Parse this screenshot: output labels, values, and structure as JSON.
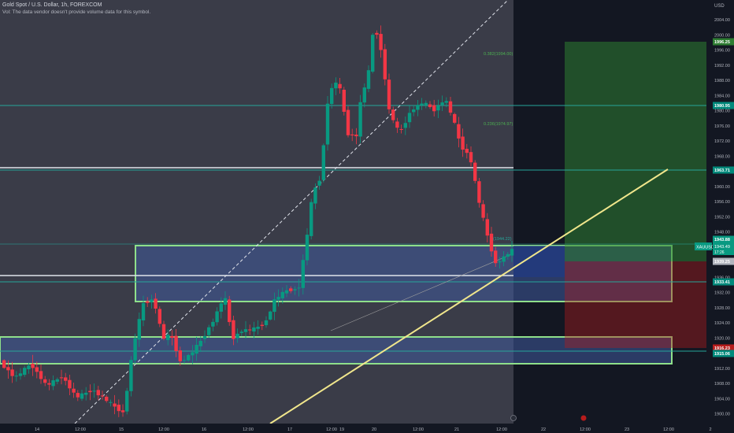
{
  "header": {
    "title": "Gold Spot / U.S. Dollar, 1h, FOREXCOM",
    "volume_note": "Vol: The data vendor doesn't provide volume data for this symbol.",
    "currency": "USD"
  },
  "price_axis": {
    "labels": [
      "2004.00",
      "2000.00",
      "1996.00",
      "1992.00",
      "1988.00",
      "1984.00",
      "1980.00",
      "1976.00",
      "1972.00",
      "1968.00",
      "1964.00",
      "1960.00",
      "1956.00",
      "1952.00",
      "1948.00",
      "1944.00",
      "1940.00",
      "1936.00",
      "1932.00",
      "1928.00",
      "1924.00",
      "1920.00",
      "1916.00",
      "1912.00",
      "1908.00",
      "1904.00",
      "1900.00"
    ]
  },
  "time_axis": {
    "labels": [
      "14",
      "12:00",
      "15",
      "12:00",
      "16",
      "12:00",
      "17",
      "12:00",
      "19",
      "20",
      "12:00",
      "21",
      "12:00",
      "22",
      "12:00",
      "23",
      "12:00",
      "2"
    ]
  },
  "price_tags": [
    {
      "text": "1996.25",
      "color": "#2e7d32"
    },
    {
      "text": "1980.95",
      "color": "#00897b"
    },
    {
      "text": "1963.71",
      "color": "#00897b"
    },
    {
      "text": "1943.88",
      "color": "#089981"
    },
    {
      "text": "1939.25",
      "color": "#b2b5be"
    },
    {
      "text": "1933.41",
      "color": "#00897b"
    },
    {
      "text": "1916.23",
      "color": "#b71c1c"
    },
    {
      "text": "1915.06",
      "color": "#00897b"
    }
  ],
  "symbol_tag": {
    "name": "XAUUSD",
    "price": "1943.49",
    "countdown": "17:26"
  },
  "fib_labels": [
    {
      "text": "0.382(1994.00)"
    },
    {
      "text": "0.236(1974.97)"
    },
    {
      "text": "(1944.22)"
    }
  ],
  "colors": {
    "background": "#131722",
    "history_bg": "#3a3c48",
    "up": "#089981",
    "down": "#f23645",
    "zone_fill": "#3f5a9c",
    "zone_border": "#8fe08a",
    "trendline": "#f0e68c",
    "profit": "#2e7d32",
    "loss": "#b71c1c"
  }
}
